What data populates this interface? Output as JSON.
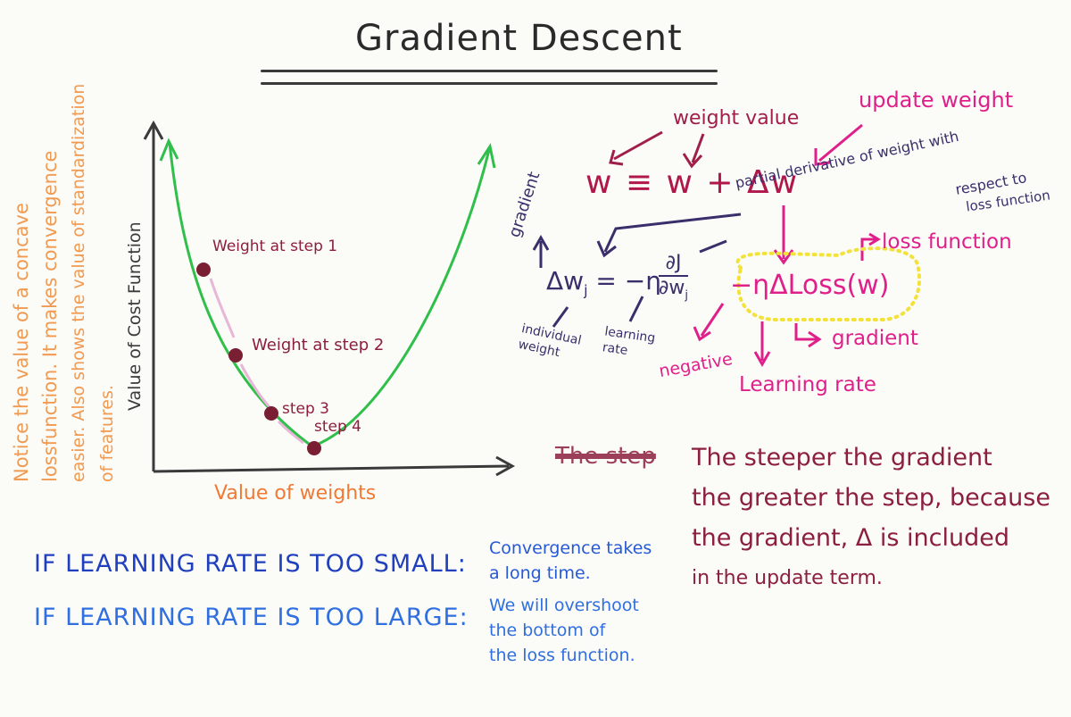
{
  "title": "Gradient Descent",
  "side_note": {
    "lines": [
      "Notice the value of a concave",
      "lossfunction. It makes convergence",
      "easier. Also shows the value of standardization",
      "of features."
    ]
  },
  "graph": {
    "ylabel": "Value of Cost Function",
    "xlabel": "Value of weights",
    "points": [
      {
        "label": "Weight at step 1"
      },
      {
        "label": "Weight at step 2"
      },
      {
        "label": "step 3"
      },
      {
        "label": "step 4"
      }
    ]
  },
  "equation": {
    "label_weight_value": "weight value",
    "label_update_weight": "update weight",
    "main_eq": "w ≡ w + Δw",
    "label_gradient": "gradient",
    "label_partial_1": "partial derivative of weight with",
    "label_partial_2": "respect to",
    "label_partial_3": "loss function",
    "delta_w": "Δw",
    "delta_w_sub": "j",
    "eq_mid": "= −η",
    "frac_num": "∂J",
    "frac_den": "∂w",
    "frac_den_sub": "j",
    "loss_expr": "−ηΔLoss(w)",
    "label_loss_function": "loss function",
    "label_individual_weight": "individual weight",
    "label_learning_rate_small": "learning rate",
    "label_negative": "negative",
    "label_learning_rate": "Learning rate",
    "label_gradient2": "gradient"
  },
  "notes": {
    "struck_text": "The step",
    "lines": [
      "The steeper the gradient",
      "the greater the step, because",
      "the gradient, Δ is included",
      "in the update term."
    ]
  },
  "learning_rate": {
    "small_label": "IF LEARNING RATE IS TOO SMALL:",
    "small_effect": [
      "Convergence takes",
      "a long time."
    ],
    "large_label": "IF LEARNING RATE IS TOO LARGE:",
    "large_effect": [
      "We will overshoot",
      "the bottom of",
      "the loss function."
    ]
  },
  "colors": {
    "curve": "#2fbf4a",
    "points": "#7a1f33",
    "magenta": "#e0208a",
    "dark_ink": "#3a2e6b",
    "orange": "#f09a52",
    "blue": "#1f3fbf"
  }
}
